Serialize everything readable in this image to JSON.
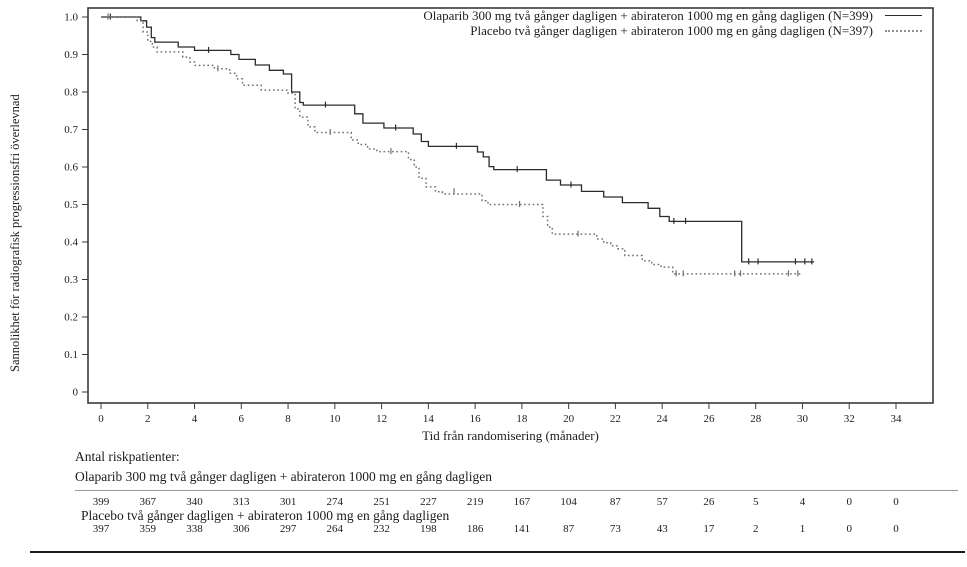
{
  "figure_colors": {
    "olaparib_line": "#2b2b2b",
    "placebo_line": "#707070",
    "frame": "#3a3a3a",
    "text": "#1c1c1c"
  },
  "legend": {
    "items": [
      {
        "label": "Olaparib 300 mg två gånger dagligen + abirateron 1000 mg en gång dagligen (N=399)",
        "style": "solid"
      },
      {
        "label": "Placebo två gånger dagligen + abirateron 1000 mg en gång dagligen (N=397)",
        "style": "dotted"
      }
    ]
  },
  "chart_data": {
    "type": "line",
    "subtype": "kaplan-meier-step",
    "title": "",
    "xlabel": "Tid från randomisering (månader)",
    "ylabel": "Sannolikhet för radiografisk progressionsfri överlevnad",
    "xlim": [
      0,
      34
    ],
    "ylim": [
      0,
      1.0
    ],
    "grid": false,
    "legend_position": "top-right-inside",
    "x_ticks": [
      0,
      2,
      4,
      6,
      8,
      10,
      12,
      14,
      16,
      18,
      20,
      22,
      24,
      26,
      28,
      30,
      32,
      34
    ],
    "y_tick_labels": [
      "1.0",
      "0.9",
      "0.8",
      "0.7",
      "0.6",
      "0.5",
      "0.4",
      "0.3",
      "0.2",
      "0.1",
      "0"
    ],
    "series": [
      {
        "name": "Olaparib 300 mg två gånger dagligen + abirateron 1000 mg en gång dagligen (N=399)",
        "n": 399,
        "line_style": "solid",
        "color": "#2b2b2b",
        "step_points": [
          [
            0,
            1.0
          ],
          [
            1.7,
            0.99
          ],
          [
            1.95,
            0.973
          ],
          [
            2.15,
            0.945
          ],
          [
            2.3,
            0.933
          ],
          [
            3.3,
            0.92
          ],
          [
            4.0,
            0.911
          ],
          [
            5.55,
            0.9
          ],
          [
            5.9,
            0.887
          ],
          [
            6.6,
            0.872
          ],
          [
            7.2,
            0.858
          ],
          [
            7.8,
            0.848
          ],
          [
            8.15,
            0.8
          ],
          [
            8.5,
            0.772
          ],
          [
            8.65,
            0.765
          ],
          [
            10.85,
            0.742
          ],
          [
            11.2,
            0.717
          ],
          [
            12.1,
            0.704
          ],
          [
            13.35,
            0.688
          ],
          [
            13.7,
            0.668
          ],
          [
            14.0,
            0.655
          ],
          [
            16.1,
            0.64
          ],
          [
            16.35,
            0.627
          ],
          [
            16.6,
            0.601
          ],
          [
            16.8,
            0.593
          ],
          [
            19.05,
            0.565
          ],
          [
            19.65,
            0.552
          ],
          [
            20.55,
            0.535
          ],
          [
            21.5,
            0.52
          ],
          [
            22.3,
            0.505
          ],
          [
            23.4,
            0.49
          ],
          [
            23.9,
            0.468
          ],
          [
            24.3,
            0.455
          ],
          [
            27.4,
            0.347
          ],
          [
            30.5,
            0.347
          ]
        ],
        "censor_marks": [
          [
            0.4,
            1.0
          ],
          [
            4.6,
            0.911
          ],
          [
            9.6,
            0.765
          ],
          [
            12.6,
            0.704
          ],
          [
            15.2,
            0.655
          ],
          [
            17.8,
            0.593
          ],
          [
            20.1,
            0.552
          ],
          [
            24.5,
            0.455
          ],
          [
            25.0,
            0.455
          ],
          [
            27.7,
            0.347
          ],
          [
            28.1,
            0.347
          ],
          [
            29.7,
            0.347
          ],
          [
            30.1,
            0.347
          ],
          [
            30.4,
            0.347
          ]
        ]
      },
      {
        "name": "Placebo två gånger dagligen + abirateron 1000 mg en gång dagligen (N=397)",
        "n": 397,
        "line_style": "dotted",
        "color": "#707070",
        "step_points": [
          [
            0,
            1.0
          ],
          [
            1.55,
            0.99
          ],
          [
            1.8,
            0.96
          ],
          [
            2.0,
            0.935
          ],
          [
            2.2,
            0.92
          ],
          [
            2.4,
            0.907
          ],
          [
            3.5,
            0.893
          ],
          [
            3.8,
            0.88
          ],
          [
            4.0,
            0.871
          ],
          [
            4.85,
            0.862
          ],
          [
            5.5,
            0.85
          ],
          [
            5.8,
            0.835
          ],
          [
            6.05,
            0.818
          ],
          [
            6.85,
            0.805
          ],
          [
            8.0,
            0.797
          ],
          [
            8.3,
            0.755
          ],
          [
            8.5,
            0.733
          ],
          [
            8.85,
            0.707
          ],
          [
            9.15,
            0.692
          ],
          [
            10.7,
            0.672
          ],
          [
            11.0,
            0.66
          ],
          [
            11.4,
            0.648
          ],
          [
            11.8,
            0.641
          ],
          [
            13.15,
            0.62
          ],
          [
            13.4,
            0.6
          ],
          [
            13.6,
            0.57
          ],
          [
            13.9,
            0.547
          ],
          [
            14.3,
            0.534
          ],
          [
            14.6,
            0.528
          ],
          [
            16.3,
            0.51
          ],
          [
            16.55,
            0.5
          ],
          [
            18.9,
            0.468
          ],
          [
            19.1,
            0.44
          ],
          [
            19.3,
            0.421
          ],
          [
            21.2,
            0.408
          ],
          [
            21.5,
            0.398
          ],
          [
            21.8,
            0.39
          ],
          [
            22.1,
            0.382
          ],
          [
            22.4,
            0.364
          ],
          [
            23.15,
            0.35
          ],
          [
            23.55,
            0.34
          ],
          [
            23.95,
            0.333
          ],
          [
            24.45,
            0.315
          ],
          [
            30.0,
            0.315
          ]
        ],
        "censor_marks": [
          [
            0.3,
            1.0
          ],
          [
            5.0,
            0.862
          ],
          [
            9.8,
            0.692
          ],
          [
            12.4,
            0.641
          ],
          [
            15.1,
            0.534
          ],
          [
            17.9,
            0.5
          ],
          [
            20.4,
            0.421
          ],
          [
            24.6,
            0.315
          ],
          [
            24.9,
            0.315
          ],
          [
            27.1,
            0.315
          ],
          [
            27.35,
            0.315
          ],
          [
            29.4,
            0.315
          ],
          [
            29.8,
            0.315
          ]
        ]
      }
    ]
  },
  "risk_table": {
    "heading": "Antal riskpatienter:",
    "timepoints": [
      0,
      2,
      4,
      6,
      8,
      10,
      12,
      14,
      16,
      18,
      20,
      22,
      24,
      26,
      28,
      30,
      32,
      34
    ],
    "groups": [
      {
        "label": "Olaparib 300 mg två gånger dagligen + abirateron 1000 mg en gång dagligen",
        "counts": [
          399,
          367,
          340,
          313,
          301,
          274,
          251,
          227,
          219,
          167,
          104,
          87,
          57,
          26,
          5,
          4,
          0,
          0
        ]
      },
      {
        "label": "Placebo två gånger dagligen + abirateron 1000 mg en gång dagligen",
        "counts": [
          397,
          359,
          338,
          306,
          297,
          264,
          232,
          198,
          186,
          141,
          87,
          73,
          43,
          17,
          2,
          1,
          0,
          0
        ]
      }
    ]
  }
}
